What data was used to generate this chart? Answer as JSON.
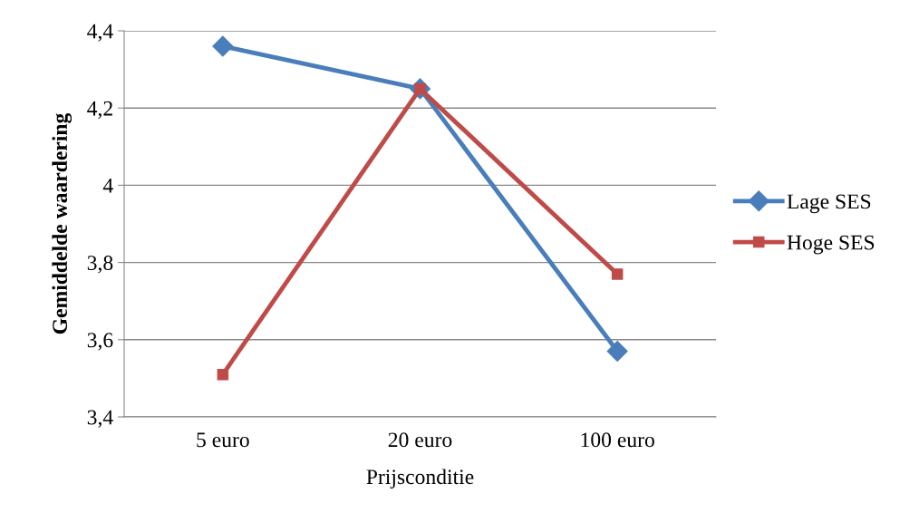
{
  "chart_data": {
    "type": "line",
    "xlabel": "Prijsconditie",
    "ylabel": "Gemiddelde waardering",
    "categories": [
      "5 euro",
      "20 euro",
      "100 euro"
    ],
    "series": [
      {
        "name": "Lage SES",
        "color": "#4a7ebb",
        "marker": "diamond",
        "values": [
          4.36,
          4.25,
          3.57
        ]
      },
      {
        "name": "Hoge SES",
        "color": "#be4b48",
        "marker": "square",
        "values": [
          3.51,
          4.25,
          3.77
        ]
      }
    ],
    "ylim": [
      3.4,
      4.4
    ],
    "yticks": [
      {
        "value": 3.4,
        "label": "3,4"
      },
      {
        "value": 3.6,
        "label": "3,6"
      },
      {
        "value": 3.8,
        "label": "3,8"
      },
      4,
      {
        "value": 4.2,
        "label": "4,2"
      },
      {
        "value": 4.4,
        "label": "4,4"
      }
    ],
    "grid": "y",
    "legend": "right",
    "line_style": "solid"
  }
}
